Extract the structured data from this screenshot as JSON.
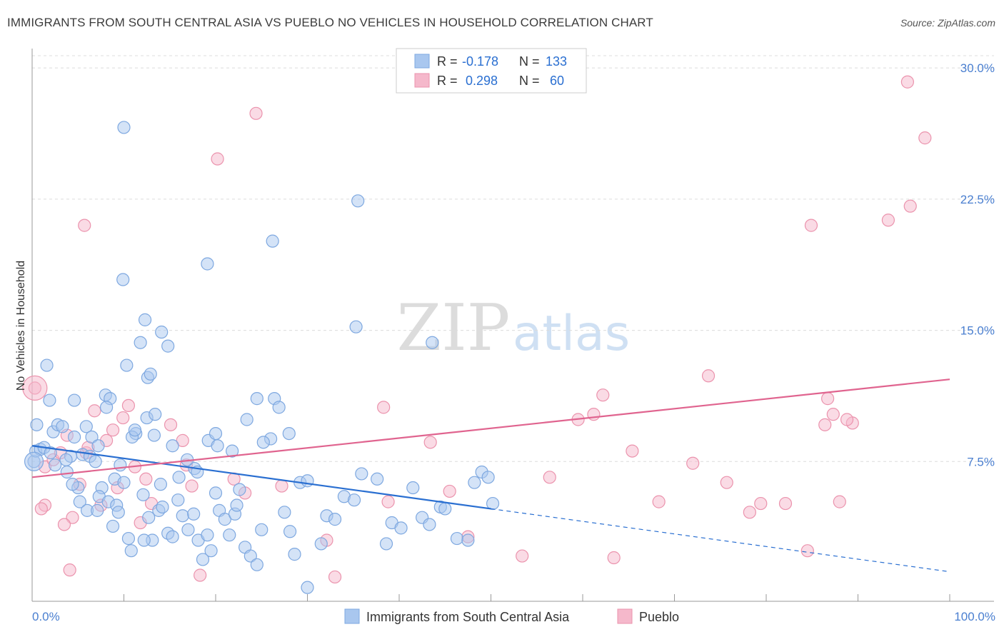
{
  "title": "IMMIGRANTS FROM SOUTH CENTRAL ASIA VS PUEBLO NO VEHICLES IN HOUSEHOLD CORRELATION CHART",
  "source": "Source: ZipAtlas.com",
  "watermark": {
    "zip": "ZIP",
    "atlas": "atlas"
  },
  "colors": {
    "blue_fill": "#a9c7ef",
    "blue_stroke": "#7ea8e0",
    "blue_line": "#2a6fd1",
    "pink_fill": "#f5b8cb",
    "pink_stroke": "#eb93ad",
    "pink_line": "#e0648f",
    "axis_text": "#4a7fd0",
    "grid": "#dcdcdc"
  },
  "legend_box": {
    "rows": [
      {
        "r_label": "R =",
        "r_value": "-0.178",
        "n_label": "N =",
        "n_value": "133",
        "color": "blue"
      },
      {
        "r_label": "R =",
        "r_value": "0.298",
        "n_label": "N =",
        "n_value": "60",
        "color": "pink"
      }
    ]
  },
  "chart_data": {
    "type": "scatter",
    "title": "IMMIGRANTS FROM SOUTH CENTRAL ASIA VS PUEBLO NO VEHICLES IN HOUSEHOLD CORRELATION CHART",
    "xlabel": "",
    "ylabel": "No Vehicles in Household",
    "xlim": [
      0,
      100
    ],
    "ylim": [
      0,
      30.7
    ],
    "x_tick_labels": [
      "0.0%",
      "100.0%"
    ],
    "y_ticks": [
      7.5,
      15.0,
      22.5,
      30.0
    ],
    "y_tick_labels": [
      "7.5%",
      "15.0%",
      "22.5%",
      "30.0%"
    ],
    "grid": true,
    "legend_position": "bottom-center",
    "series": [
      {
        "name": "Immigrants from South Central Asia",
        "color": "#a9c7ef",
        "trend": {
          "x0": 0,
          "y0": 8.4,
          "x1": 50,
          "y1": 4.8,
          "dashed_to_x": 100,
          "dashed_to_y": 1.2
        },
        "points": [
          [
            0.2,
            7.5
          ],
          [
            0.5,
            9.6
          ],
          [
            1.6,
            13.0
          ],
          [
            0.4,
            8.1
          ],
          [
            0.9,
            8.2
          ],
          [
            1.3,
            8.3
          ],
          [
            1.9,
            11.0
          ],
          [
            2.3,
            9.2
          ],
          [
            2.8,
            9.6
          ],
          [
            3.3,
            9.5
          ],
          [
            2.0,
            8.0
          ],
          [
            2.5,
            7.3
          ],
          [
            3.8,
            6.9
          ],
          [
            4.6,
            8.9
          ],
          [
            4.2,
            7.8
          ],
          [
            5.0,
            6.0
          ],
          [
            5.5,
            7.9
          ],
          [
            5.9,
            9.5
          ],
          [
            6.5,
            8.9
          ],
          [
            6.3,
            7.8
          ],
          [
            7.2,
            8.4
          ],
          [
            7.6,
            6.0
          ],
          [
            8.0,
            11.3
          ],
          [
            8.5,
            11.1
          ],
          [
            9.0,
            6.5
          ],
          [
            9.6,
            7.3
          ],
          [
            3.7,
            7.6
          ],
          [
            4.4,
            6.2
          ],
          [
            5.2,
            5.2
          ],
          [
            6.0,
            4.7
          ],
          [
            7.3,
            5.5
          ],
          [
            8.3,
            5.2
          ],
          [
            9.2,
            5.0
          ],
          [
            10.0,
            6.3
          ],
          [
            10.5,
            3.1
          ],
          [
            11.3,
            9.1
          ],
          [
            12.1,
            5.6
          ],
          [
            12.7,
            4.3
          ],
          [
            13.1,
            3.0
          ],
          [
            13.8,
            4.7
          ],
          [
            14.2,
            4.9
          ],
          [
            14.8,
            3.4
          ],
          [
            15.3,
            3.2
          ],
          [
            15.9,
            5.3
          ],
          [
            16.4,
            4.4
          ],
          [
            17.0,
            3.6
          ],
          [
            17.6,
            4.5
          ],
          [
            18.1,
            3.0
          ],
          [
            18.6,
            1.9
          ],
          [
            19.1,
            3.3
          ],
          [
            19.5,
            2.4
          ],
          [
            20.0,
            5.7
          ],
          [
            20.4,
            4.7
          ],
          [
            21.0,
            4.2
          ],
          [
            21.5,
            3.3
          ],
          [
            22.1,
            4.5
          ],
          [
            22.6,
            5.9
          ],
          [
            23.2,
            2.6
          ],
          [
            23.8,
            2.1
          ],
          [
            24.5,
            1.6
          ],
          [
            25.0,
            3.6
          ],
          [
            26.0,
            8.8
          ],
          [
            26.4,
            11.1
          ],
          [
            26.9,
            10.6
          ],
          [
            27.5,
            4.6
          ],
          [
            28.1,
            3.5
          ],
          [
            28.6,
            2.2
          ],
          [
            29.2,
            6.3
          ],
          [
            30.0,
            0.3
          ],
          [
            31.5,
            2.8
          ],
          [
            32.1,
            4.4
          ],
          [
            33.0,
            4.2
          ],
          [
            34.0,
            5.5
          ],
          [
            35.1,
            5.3
          ],
          [
            35.9,
            6.8
          ],
          [
            37.6,
            6.5
          ],
          [
            38.6,
            2.8
          ],
          [
            39.2,
            4.0
          ],
          [
            40.2,
            3.7
          ],
          [
            41.5,
            6.0
          ],
          [
            42.5,
            4.3
          ],
          [
            43.3,
            3.9
          ],
          [
            44.5,
            4.9
          ],
          [
            45.0,
            4.8
          ],
          [
            46.3,
            3.1
          ],
          [
            47.5,
            3.0
          ],
          [
            48.2,
            6.3
          ],
          [
            49.0,
            6.9
          ],
          [
            49.7,
            6.6
          ],
          [
            50.2,
            5.1
          ],
          [
            10.0,
            26.6
          ],
          [
            9.9,
            17.9
          ],
          [
            12.3,
            15.6
          ],
          [
            14.1,
            14.9
          ],
          [
            14.8,
            14.1
          ],
          [
            11.8,
            14.3
          ],
          [
            12.6,
            12.3
          ],
          [
            12.9,
            12.5
          ],
          [
            10.3,
            13.0
          ],
          [
            19.1,
            18.8
          ],
          [
            22.3,
            5.0
          ],
          [
            23.4,
            9.9
          ],
          [
            24.5,
            11.1
          ],
          [
            25.2,
            8.6
          ],
          [
            28.0,
            9.1
          ],
          [
            30.0,
            6.4
          ],
          [
            35.5,
            22.4
          ],
          [
            35.3,
            15.2
          ],
          [
            26.2,
            20.1
          ],
          [
            43.6,
            14.3
          ],
          [
            4.6,
            11.0
          ],
          [
            8.1,
            10.6
          ],
          [
            10.9,
            8.9
          ],
          [
            11.2,
            9.3
          ],
          [
            12.5,
            10.0
          ],
          [
            13.4,
            10.2
          ],
          [
            17.7,
            7.1
          ],
          [
            19.2,
            8.7
          ],
          [
            20.2,
            8.4
          ],
          [
            20.0,
            9.1
          ],
          [
            21.8,
            8.1
          ],
          [
            15.3,
            8.4
          ],
          [
            16.9,
            7.6
          ],
          [
            18.0,
            6.9
          ],
          [
            6.9,
            7.5
          ],
          [
            7.1,
            4.7
          ],
          [
            14.0,
            6.2
          ],
          [
            16.0,
            6.6
          ],
          [
            13.3,
            9.0
          ],
          [
            9.4,
            4.6
          ],
          [
            8.8,
            3.8
          ],
          [
            10.8,
            2.4
          ],
          [
            12.2,
            3.0
          ]
        ]
      },
      {
        "name": "Pueblo",
        "color": "#f5b8cb",
        "trend": {
          "x0": 0,
          "y0": 6.6,
          "x1": 100,
          "y1": 12.2
        },
        "points": [
          [
            0.3,
            11.7
          ],
          [
            1.4,
            7.2
          ],
          [
            2.3,
            7.6
          ],
          [
            3.1,
            8.0
          ],
          [
            3.8,
            9.0
          ],
          [
            4.4,
            4.3
          ],
          [
            5.2,
            6.2
          ],
          [
            5.9,
            8.0
          ],
          [
            6.1,
            8.3
          ],
          [
            6.8,
            10.4
          ],
          [
            7.5,
            5.0
          ],
          [
            8.1,
            8.7
          ],
          [
            8.8,
            9.3
          ],
          [
            9.3,
            6.0
          ],
          [
            9.9,
            10.0
          ],
          [
            10.5,
            10.7
          ],
          [
            11.2,
            7.2
          ],
          [
            11.8,
            4.0
          ],
          [
            12.4,
            6.5
          ],
          [
            13.0,
            5.1
          ],
          [
            1.4,
            5.0
          ],
          [
            1.0,
            4.8
          ],
          [
            3.5,
            3.9
          ],
          [
            4.1,
            1.3
          ],
          [
            5.7,
            21.0
          ],
          [
            15.1,
            9.6
          ],
          [
            16.4,
            8.7
          ],
          [
            16.8,
            7.3
          ],
          [
            17.4,
            6.1
          ],
          [
            18.3,
            1.0
          ],
          [
            20.2,
            24.8
          ],
          [
            22.0,
            6.5
          ],
          [
            23.2,
            5.7
          ],
          [
            24.4,
            27.4
          ],
          [
            27.2,
            6.1
          ],
          [
            32.1,
            3.0
          ],
          [
            33.0,
            0.9
          ],
          [
            38.3,
            10.6
          ],
          [
            38.8,
            5.2
          ],
          [
            43.4,
            8.6
          ],
          [
            45.5,
            5.8
          ],
          [
            47.5,
            3.2
          ],
          [
            53.4,
            2.1
          ],
          [
            56.4,
            6.6
          ],
          [
            59.5,
            9.9
          ],
          [
            61.2,
            10.2
          ],
          [
            62.2,
            11.3
          ],
          [
            63.4,
            2.0
          ],
          [
            65.4,
            8.1
          ],
          [
            68.3,
            5.2
          ],
          [
            72.0,
            7.4
          ],
          [
            73.7,
            12.4
          ],
          [
            75.7,
            6.3
          ],
          [
            78.2,
            4.6
          ],
          [
            79.4,
            5.1
          ],
          [
            82.1,
            5.1
          ],
          [
            84.5,
            2.4
          ],
          [
            86.4,
            9.6
          ],
          [
            88.0,
            5.2
          ],
          [
            95.4,
            29.2
          ]
        ],
        "extra_points": [
          [
            84.9,
            21.0
          ],
          [
            87.3,
            10.2
          ],
          [
            86.7,
            11.1
          ],
          [
            89.4,
            9.7
          ],
          [
            93.3,
            21.3
          ],
          [
            95.7,
            22.1
          ],
          [
            97.3,
            26.0
          ],
          [
            88.8,
            9.9
          ]
        ]
      }
    ]
  },
  "bottom_legend": {
    "items": [
      {
        "label": "Immigrants from South Central Asia",
        "color": "blue"
      },
      {
        "label": "Pueblo",
        "color": "pink"
      }
    ]
  }
}
